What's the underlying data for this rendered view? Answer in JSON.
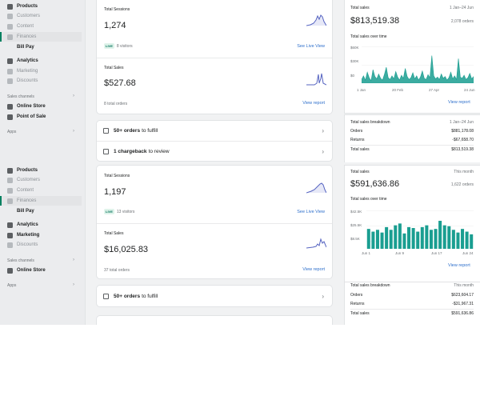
{
  "panels": [
    {
      "sidebar": {
        "items_top": [
          {
            "label": "Products",
            "state": "bold",
            "icon": "tag-icon"
          },
          {
            "label": "Customers",
            "state": "dim",
            "icon": "person-icon"
          },
          {
            "label": "Content",
            "state": "dim",
            "icon": "content-icon"
          },
          {
            "label": "Finances",
            "state": "active-dim",
            "icon": "bank-icon"
          },
          {
            "label": "Bill Pay",
            "state": "sub",
            "icon": ""
          },
          {
            "label": "Analytics",
            "state": "bold",
            "icon": "chart-icon"
          },
          {
            "label": "Marketing",
            "state": "dim",
            "icon": "target-icon"
          },
          {
            "label": "Discounts",
            "state": "dim",
            "icon": "discount-icon"
          }
        ],
        "sales_channels_label": "Sales channels",
        "channels": [
          {
            "label": "Online Store",
            "icon": "store-icon"
          },
          {
            "label": "Point of Sale",
            "icon": "pos-icon"
          }
        ],
        "apps_label": "Apps"
      },
      "sessions": {
        "label": "Total Sessions",
        "value": "1,274",
        "live_tag": "LIVE",
        "visitors": "8 visitors",
        "link": "See Live View"
      },
      "sales": {
        "label": "Total Sales",
        "value": "$527.68",
        "orders": "8 total orders",
        "link": "View report"
      },
      "todos": [
        {
          "bold": "50+ orders",
          "rest": "to fulfill",
          "icon": "download-icon"
        },
        {
          "bold": "1 chargeback",
          "rest": "to review",
          "icon": "clipboard-icon"
        }
      ],
      "right": {
        "total_sales_label": "Total sales",
        "period": "1 Jan–24 Jun",
        "value": "$813,519.38",
        "orders": "2,078 orders",
        "over_time_label": "Total sales over time",
        "y_ticks": [
          "$60K",
          "$30K",
          "$0"
        ],
        "x_ticks": [
          "1 Jan",
          "20 Feb",
          "27 Apr",
          "24 Jun"
        ],
        "link": "View report",
        "breakdown_label": "Total sales breakdown",
        "breakdown_period": "1 Jan–24 Jun",
        "breakdown": [
          {
            "label": "Orders",
            "value": "$881,178.08"
          },
          {
            "label": "Returns",
            "value": "-$67,658.70"
          },
          {
            "label": "Total sales",
            "value": "$813,519.38"
          }
        ]
      }
    },
    {
      "sidebar": {
        "items_top": [
          {
            "label": "Products",
            "state": "bold",
            "icon": "tag-icon"
          },
          {
            "label": "Customers",
            "state": "dim",
            "icon": "person-icon"
          },
          {
            "label": "Content",
            "state": "dim",
            "icon": "content-icon"
          },
          {
            "label": "Finances",
            "state": "active-dim",
            "icon": "bank-icon"
          },
          {
            "label": "Bill Pay",
            "state": "sub",
            "icon": ""
          },
          {
            "label": "Analytics",
            "state": "bold",
            "icon": "chart-icon"
          },
          {
            "label": "Marketing",
            "state": "bold",
            "icon": "target-icon"
          },
          {
            "label": "Discounts",
            "state": "dim",
            "icon": "discount-icon"
          }
        ],
        "sales_channels_label": "Sales channels",
        "channels": [
          {
            "label": "Online Store",
            "icon": "store-icon"
          }
        ],
        "apps_label": "Apps"
      },
      "sessions": {
        "label": "Total Sessions",
        "value": "1,197",
        "live_tag": "LIVE",
        "visitors": "13 visitors",
        "link": "See Live View"
      },
      "sales": {
        "label": "Total Sales",
        "value": "$16,025.83",
        "orders": "37 total orders",
        "link": "View report"
      },
      "todos": [
        {
          "bold": "50+ orders",
          "rest": "to fulfill",
          "icon": "download-icon"
        }
      ],
      "right": {
        "total_sales_label": "Total sales",
        "period": "This month",
        "value": "$591,636.86",
        "orders": "1,622 orders",
        "over_time_label": "Total sales over time",
        "y_ticks": [
          "$42.5K",
          "$25.5K",
          "$8.5K"
        ],
        "x_ticks": [
          "Jun 1",
          "Jun 9",
          "Jun 17",
          "Jun 24"
        ],
        "link": "View report",
        "breakdown_label": "Total sales breakdown",
        "breakdown_period": "This month",
        "breakdown": [
          {
            "label": "Orders",
            "value": "$623,604.17"
          },
          {
            "label": "Returns",
            "value": "-$31,967.31"
          },
          {
            "label": "Total sales",
            "value": "$591,636.86"
          }
        ]
      }
    }
  ],
  "colors": {
    "accent": "#008060",
    "chart": "#1a9e91",
    "link": "#2c6ecb",
    "spark": "#5563c1"
  },
  "chart_data": [
    {
      "type": "area",
      "x_range": [
        "1 Jan",
        "24 Jun"
      ],
      "ylim": [
        0,
        60000
      ],
      "values": [
        6000,
        12000,
        5000,
        18000,
        9000,
        4000,
        22000,
        11000,
        7000,
        15000,
        8000,
        5000,
        14000,
        26000,
        9000,
        6000,
        12000,
        7000,
        19000,
        10000,
        5000,
        13000,
        8000,
        24000,
        11000,
        6000,
        9000,
        17000,
        7000,
        12000,
        5000,
        10000,
        20000,
        8000,
        6000,
        14000,
        9000,
        45000,
        12000,
        7000,
        10000,
        6000,
        15000,
        8000,
        11000,
        5000,
        9000,
        18000,
        7000,
        12000,
        6000,
        40000,
        10000,
        8000,
        13000,
        6000,
        9000,
        16000,
        7000,
        11000
      ]
    },
    {
      "type": "bar",
      "x_range": [
        "Jun 1",
        "Jun 24"
      ],
      "ylim": [
        0,
        42500
      ],
      "values": [
        22000,
        19000,
        21000,
        18000,
        24000,
        21000,
        26000,
        28000,
        17000,
        24000,
        23000,
        19000,
        24000,
        26000,
        21000,
        22000,
        31000,
        26000,
        25000,
        21000,
        18000,
        22000,
        19000,
        16000
      ]
    }
  ]
}
